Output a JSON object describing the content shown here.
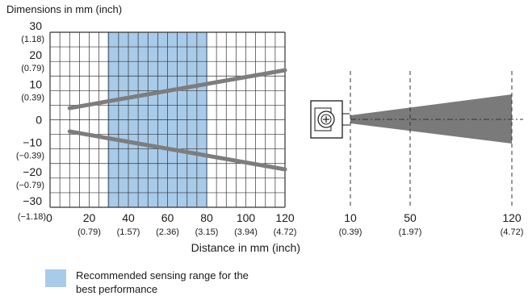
{
  "figure": {
    "title": "Dimensions in mm (inch)",
    "xlabel": "Distance in mm (inch)",
    "y_ticks": [
      {
        "mm": "30",
        "inch": "(1.18)"
      },
      {
        "mm": "20",
        "inch": "(0.79)"
      },
      {
        "mm": "10",
        "inch": "(0.39)"
      },
      {
        "mm": "0",
        "inch": ""
      },
      {
        "mm": "−10",
        "inch": "(−0.39)"
      },
      {
        "mm": "−20",
        "inch": "(−0.79)"
      },
      {
        "mm": "−30",
        "inch": "(−1.18)"
      }
    ],
    "x_ticks": [
      {
        "mm": "0",
        "inch": ""
      },
      {
        "mm": "20",
        "inch": "(0.79)"
      },
      {
        "mm": "40",
        "inch": "(1.57)"
      },
      {
        "mm": "60",
        "inch": "(2.36)"
      },
      {
        "mm": "80",
        "inch": "(3.15)"
      },
      {
        "mm": "100",
        "inch": "(3.94)"
      },
      {
        "mm": "120",
        "inch": "(4.72)"
      }
    ],
    "beam_marks": [
      {
        "mm": "10",
        "inch": "(0.39)"
      },
      {
        "mm": "50",
        "inch": "(1.97)"
      },
      {
        "mm": "120",
        "inch": "(4.72)"
      }
    ]
  },
  "legend": {
    "label": "Recommended sensing range for the best performance",
    "color": "#a8cbe9"
  },
  "colors": {
    "beam": "#7a7a7a",
    "lines": "#7d7d7d",
    "grid": "#333333"
  },
  "chart_data": {
    "type": "line",
    "xlabel": "Distance in mm (inch)",
    "ylabel": "Dimensions in mm (inch)",
    "xlim": [
      0,
      120
    ],
    "ylim": [
      -30,
      30
    ],
    "highlight_range": [
      30,
      80
    ],
    "series": [
      {
        "x": [
          10,
          120
        ],
        "y": [
          4,
          17
        ]
      },
      {
        "x": [
          10,
          120
        ],
        "y": [
          -4,
          -17
        ]
      }
    ]
  }
}
